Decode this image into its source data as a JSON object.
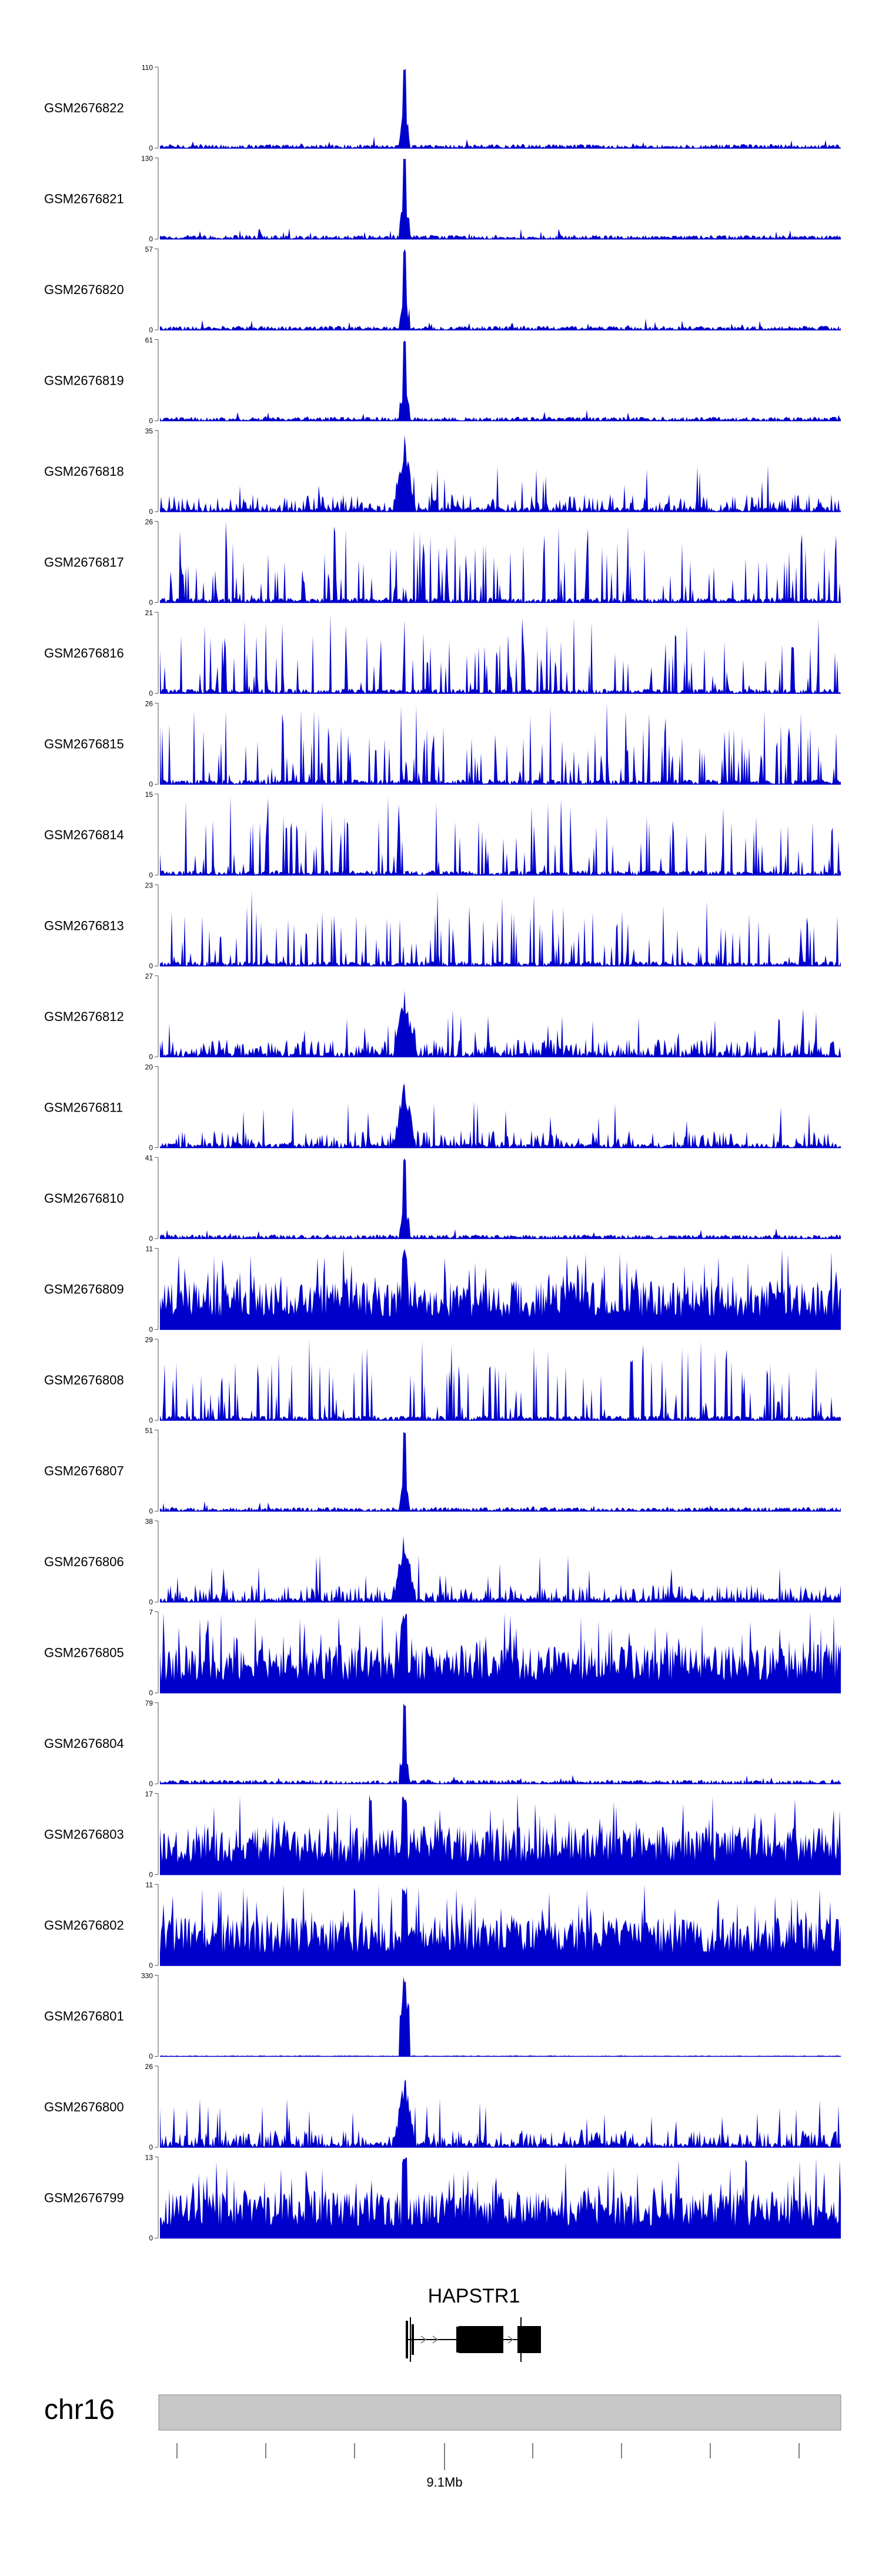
{
  "chart_data": {
    "type": "area",
    "track_max_ticks": [
      "110",
      "130",
      "57",
      "61",
      "35",
      "26",
      "21",
      "26",
      "15",
      "23",
      "27",
      "20",
      "41",
      "11",
      "29",
      "51",
      "38",
      "7",
      "79",
      "17",
      "11",
      "330",
      "26",
      "13"
    ],
    "track_min_tick": "0",
    "tracks": [
      {
        "name": "GSM2676822",
        "max": 110,
        "profile": "peak"
      },
      {
        "name": "GSM2676821",
        "max": 130,
        "profile": "peak"
      },
      {
        "name": "GSM2676820",
        "max": 57,
        "profile": "peak"
      },
      {
        "name": "GSM2676819",
        "max": 61,
        "profile": "peak"
      },
      {
        "name": "GSM2676818",
        "max": 35,
        "profile": "medium"
      },
      {
        "name": "GSM2676817",
        "max": 26,
        "profile": "sparse"
      },
      {
        "name": "GSM2676816",
        "max": 21,
        "profile": "sparse"
      },
      {
        "name": "GSM2676815",
        "max": 26,
        "profile": "sparse"
      },
      {
        "name": "GSM2676814",
        "max": 15,
        "profile": "sparse"
      },
      {
        "name": "GSM2676813",
        "max": 23,
        "profile": "sparse"
      },
      {
        "name": "GSM2676812",
        "max": 27,
        "profile": "medium"
      },
      {
        "name": "GSM2676811",
        "max": 20,
        "profile": "medium"
      },
      {
        "name": "GSM2676810",
        "max": 41,
        "profile": "peak"
      },
      {
        "name": "GSM2676809",
        "max": 11,
        "profile": "dense"
      },
      {
        "name": "GSM2676808",
        "max": 29,
        "profile": "sparse"
      },
      {
        "name": "GSM2676807",
        "max": 51,
        "profile": "peak"
      },
      {
        "name": "GSM2676806",
        "max": 38,
        "profile": "medium"
      },
      {
        "name": "GSM2676805",
        "max": 7,
        "profile": "dense"
      },
      {
        "name": "GSM2676804",
        "max": 79,
        "profile": "peak"
      },
      {
        "name": "GSM2676803",
        "max": 17,
        "profile": "dense"
      },
      {
        "name": "GSM2676802",
        "max": 11,
        "profile": "dense"
      },
      {
        "name": "GSM2676801",
        "max": 330,
        "profile": "spike"
      },
      {
        "name": "GSM2676800",
        "max": 26,
        "profile": "medium"
      },
      {
        "name": "GSM2676799",
        "max": 13,
        "profile": "dense"
      }
    ],
    "gene": {
      "name": "HAPSTR1"
    },
    "chromosome": {
      "label": "chr16",
      "tick_label": "9.1Mb"
    }
  },
  "colors": {
    "signal": "#0000cc",
    "axis": "#444444",
    "ideogram": "#c8c8c8",
    "ideogram_border": "#888888",
    "gene": "#000000"
  }
}
